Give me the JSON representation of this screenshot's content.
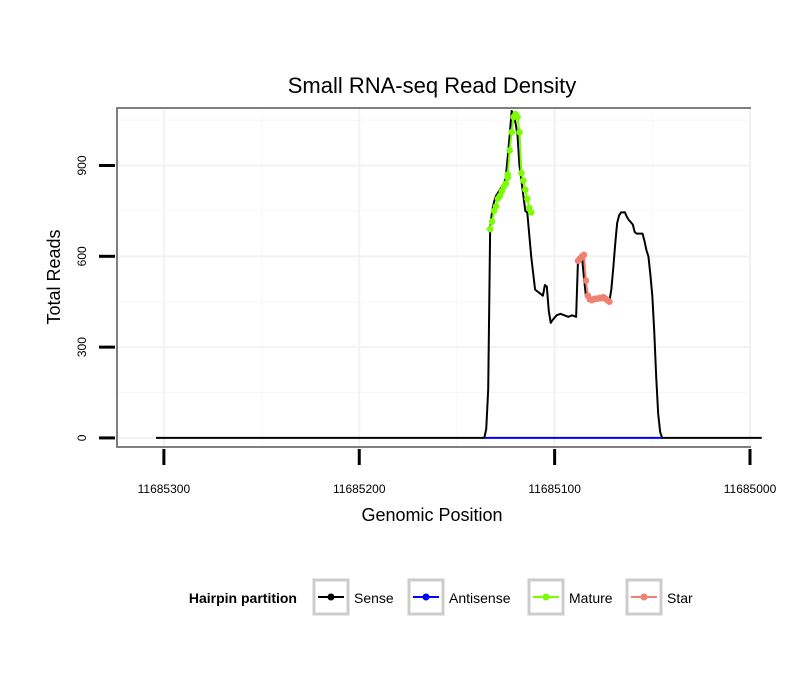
{
  "chart_data": {
    "type": "line",
    "title": "Small RNA-seq Read Density",
    "xlabel": "Genomic Position",
    "ylabel": "Total Reads",
    "x_reversed": true,
    "xlim": [
      11685000,
      11685324
    ],
    "ylim": [
      -30,
      1090
    ],
    "x_ticks": [
      11685300,
      11685200,
      11685100,
      11685000
    ],
    "x_tick_labels": [
      "11685300",
      "11685200",
      "11685100",
      "11685000"
    ],
    "y_ticks": [
      0,
      300,
      600,
      900
    ],
    "y_tick_labels": [
      "0",
      "300",
      "600",
      "900"
    ],
    "grid": true,
    "legend": {
      "title": "Hairpin partition",
      "position": "bottom",
      "entries": [
        {
          "label": "Sense",
          "color": "#000000"
        },
        {
          "label": "Antisense",
          "color": "#0000ff"
        },
        {
          "label": "Mature",
          "color": "#7cfc00"
        },
        {
          "label": "Star",
          "color": "#f08070"
        }
      ]
    },
    "series": [
      {
        "name": "Sense",
        "color": "#000000",
        "style": "line",
        "points": [
          [
            11685304,
            0
          ],
          [
            11685200,
            0
          ],
          [
            11685136,
            0
          ],
          [
            11685135,
            30
          ],
          [
            11685134,
            160
          ],
          [
            11685133,
            690
          ],
          [
            11685132,
            750
          ],
          [
            11685131,
            780
          ],
          [
            11685130,
            800
          ],
          [
            11685128,
            820
          ],
          [
            11685126,
            840
          ],
          [
            11685125,
            860
          ],
          [
            11685124,
            930
          ],
          [
            11685123,
            1000
          ],
          [
            11685122,
            1080
          ],
          [
            11685121,
            1070
          ],
          [
            11685120,
            1040
          ],
          [
            11685119,
            1000
          ],
          [
            11685118,
            900
          ],
          [
            11685117,
            850
          ],
          [
            11685116,
            800
          ],
          [
            11685115,
            750
          ],
          [
            11685114,
            745
          ],
          [
            11685112,
            600
          ],
          [
            11685110,
            490
          ],
          [
            11685108,
            480
          ],
          [
            11685106,
            470
          ],
          [
            11685105,
            505
          ],
          [
            11685104,
            500
          ],
          [
            11685103,
            420
          ],
          [
            11685102,
            380
          ],
          [
            11685101,
            390
          ],
          [
            11685099,
            405
          ],
          [
            11685097,
            410
          ],
          [
            11685095,
            405
          ],
          [
            11685093,
            400
          ],
          [
            11685091,
            405
          ],
          [
            11685089,
            400
          ],
          [
            11685088,
            595
          ],
          [
            11685087,
            600
          ],
          [
            11685086,
            600
          ],
          [
            11685085,
            530
          ],
          [
            11685084,
            470
          ],
          [
            11685083,
            460
          ],
          [
            11685082,
            455
          ],
          [
            11685080,
            455
          ],
          [
            11685078,
            460
          ],
          [
            11685076,
            460
          ],
          [
            11685074,
            465
          ],
          [
            11685073,
            460
          ],
          [
            11685072,
            450
          ],
          [
            11685071,
            490
          ],
          [
            11685070,
            560
          ],
          [
            11685069,
            640
          ],
          [
            11685068,
            710
          ],
          [
            11685067,
            735
          ],
          [
            11685066,
            745
          ],
          [
            11685064,
            745
          ],
          [
            11685063,
            730
          ],
          [
            11685062,
            720
          ],
          [
            11685060,
            705
          ],
          [
            11685059,
            680
          ],
          [
            11685058,
            675
          ],
          [
            11685056,
            675
          ],
          [
            11685055,
            675
          ],
          [
            11685054,
            650
          ],
          [
            11685053,
            620
          ],
          [
            11685052,
            600
          ],
          [
            11685051,
            540
          ],
          [
            11685050,
            470
          ],
          [
            11685049,
            350
          ],
          [
            11685048,
            200
          ],
          [
            11685047,
            80
          ],
          [
            11685046,
            20
          ],
          [
            11685045,
            0
          ],
          [
            11685000,
            0
          ],
          [
            11684994,
            0
          ]
        ]
      },
      {
        "name": "Antisense",
        "color": "#0000ff",
        "style": "line",
        "points": [
          [
            11685136,
            0
          ],
          [
            11685045,
            0
          ]
        ]
      },
      {
        "name": "Mature",
        "color": "#7cfc00",
        "style": "line+points",
        "points": [
          [
            11685133,
            690
          ],
          [
            11685132,
            715
          ],
          [
            11685131,
            750
          ],
          [
            11685130,
            765
          ],
          [
            11685129,
            790
          ],
          [
            11685128,
            800
          ],
          [
            11685127,
            815
          ],
          [
            11685126,
            830
          ],
          [
            11685125,
            840
          ],
          [
            11685124,
            860
          ],
          [
            11685124,
            870
          ],
          [
            11685123,
            950
          ],
          [
            11685122,
            1010
          ],
          [
            11685121,
            1060
          ],
          [
            11685120,
            1070
          ],
          [
            11685119,
            1060
          ],
          [
            11685118,
            1010
          ],
          [
            11685117,
            875
          ],
          [
            11685116,
            850
          ],
          [
            11685115,
            820
          ],
          [
            11685114,
            790
          ],
          [
            11685113,
            760
          ],
          [
            11685112,
            745
          ]
        ]
      },
      {
        "name": "Star",
        "color": "#f08070",
        "style": "line+points",
        "points": [
          [
            11685088,
            585
          ],
          [
            11685087,
            592
          ],
          [
            11685086,
            600
          ],
          [
            11685085,
            605
          ],
          [
            11685084,
            520
          ],
          [
            11685083,
            470
          ],
          [
            11685082,
            458
          ],
          [
            11685081,
            455
          ],
          [
            11685080,
            458
          ],
          [
            11685079,
            460
          ],
          [
            11685078,
            460
          ],
          [
            11685077,
            462
          ],
          [
            11685076,
            462
          ],
          [
            11685075,
            465
          ],
          [
            11685074,
            460
          ],
          [
            11685073,
            455
          ],
          [
            11685072,
            450
          ]
        ]
      }
    ]
  }
}
